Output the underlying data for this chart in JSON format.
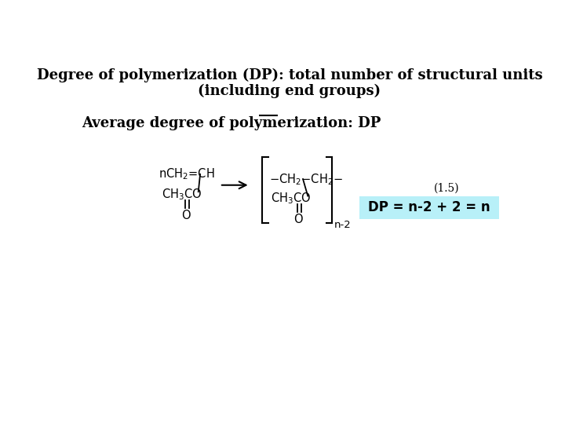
{
  "bg_color": "#ffffff",
  "title_line1": "Degree of polymerization (DP): total number of structural units",
  "title_line2": "(including end groups)",
  "avg_dp_label": "Average degree of polymerization: ",
  "avg_dp_dp": "DP",
  "eq_number": "(1.5)",
  "dp_box_text": "DP = n-2 + 2 = n",
  "dp_box_color": "#b8f0f8",
  "fig_width": 7.2,
  "fig_height": 5.4,
  "dpi": 100
}
